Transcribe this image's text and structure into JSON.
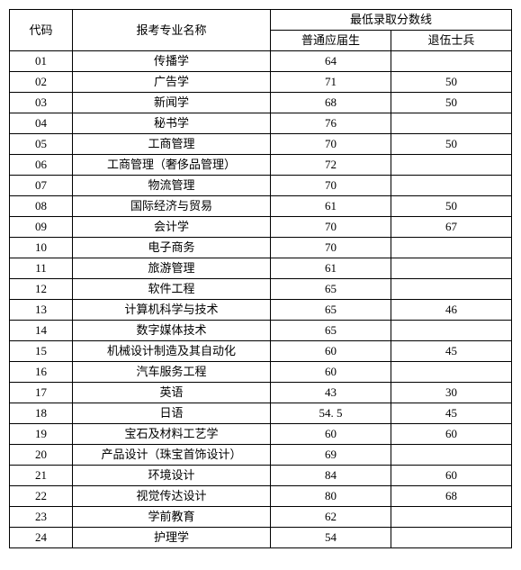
{
  "headers": {
    "code": "代码",
    "major": "报考专业名称",
    "score_group": "最低录取分数线",
    "score1": "普通应届生",
    "score2": "退伍士兵"
  },
  "rows": [
    {
      "code": "01",
      "major": "传播学",
      "s1": "64",
      "s2": ""
    },
    {
      "code": "02",
      "major": "广告学",
      "s1": "71",
      "s2": "50"
    },
    {
      "code": "03",
      "major": "新闻学",
      "s1": "68",
      "s2": "50"
    },
    {
      "code": "04",
      "major": "秘书学",
      "s1": "76",
      "s2": ""
    },
    {
      "code": "05",
      "major": "工商管理",
      "s1": "70",
      "s2": "50"
    },
    {
      "code": "06",
      "major": "工商管理（奢侈品管理）",
      "s1": "72",
      "s2": ""
    },
    {
      "code": "07",
      "major": "物流管理",
      "s1": "70",
      "s2": ""
    },
    {
      "code": "08",
      "major": "国际经济与贸易",
      "s1": "61",
      "s2": "50"
    },
    {
      "code": "09",
      "major": "会计学",
      "s1": "70",
      "s2": "67"
    },
    {
      "code": "10",
      "major": "电子商务",
      "s1": "70",
      "s2": ""
    },
    {
      "code": "11",
      "major": "旅游管理",
      "s1": "61",
      "s2": ""
    },
    {
      "code": "12",
      "major": "软件工程",
      "s1": "65",
      "s2": ""
    },
    {
      "code": "13",
      "major": "计算机科学与技术",
      "s1": "65",
      "s2": "46"
    },
    {
      "code": "14",
      "major": "数字媒体技术",
      "s1": "65",
      "s2": ""
    },
    {
      "code": "15",
      "major": "机械设计制造及其自动化",
      "s1": "60",
      "s2": "45"
    },
    {
      "code": "16",
      "major": "汽车服务工程",
      "s1": "60",
      "s2": ""
    },
    {
      "code": "17",
      "major": "英语",
      "s1": "43",
      "s2": "30"
    },
    {
      "code": "18",
      "major": "日语",
      "s1": "54. 5",
      "s2": "45"
    },
    {
      "code": "19",
      "major": "宝石及材料工艺学",
      "s1": "60",
      "s2": "60"
    },
    {
      "code": "20",
      "major": "产品设计（珠宝首饰设计）",
      "s1": "69",
      "s2": ""
    },
    {
      "code": "21",
      "major": "环境设计",
      "s1": "84",
      "s2": "60"
    },
    {
      "code": "22",
      "major": "视觉传达设计",
      "s1": "80",
      "s2": "68"
    },
    {
      "code": "23",
      "major": "学前教育",
      "s1": "62",
      "s2": ""
    },
    {
      "code": "24",
      "major": "护理学",
      "s1": "54",
      "s2": ""
    }
  ]
}
